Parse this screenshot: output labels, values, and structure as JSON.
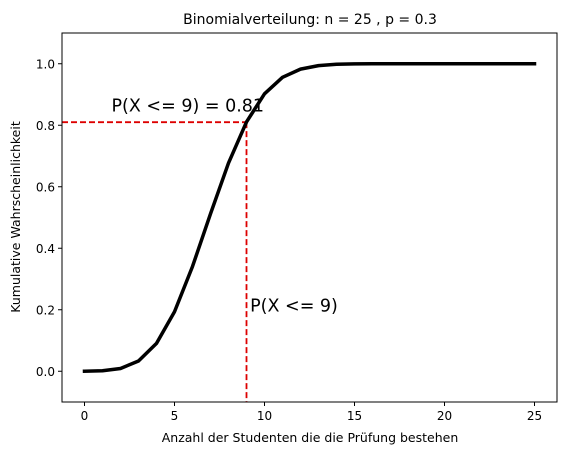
{
  "chart_data": {
    "type": "line",
    "title": "Binomialverteilung: n = 25 , p = 0.3",
    "xlabel": "Anzahl der Studenten die die Prüfung bestehen",
    "ylabel": "Kumulative Wahrscheinlichkeit",
    "xlim": [
      -1.25,
      26.25
    ],
    "ylim": [
      -0.1,
      1.1
    ],
    "xticks": [
      0,
      5,
      10,
      15,
      20,
      25
    ],
    "yticks": [
      0.0,
      0.2,
      0.4,
      0.6,
      0.8,
      1.0
    ],
    "grid": false,
    "series": [
      {
        "color": "#000000",
        "x": [
          0,
          1,
          2,
          3,
          4,
          5,
          6,
          7,
          8,
          9,
          10,
          11,
          12,
          13,
          14,
          15,
          16,
          17,
          18,
          19,
          20,
          21,
          22,
          23,
          24,
          25
        ],
        "y": [
          0.0001,
          0.0016,
          0.009,
          0.0332,
          0.0905,
          0.1935,
          0.3407,
          0.5118,
          0.6769,
          0.8106,
          0.9022,
          0.9558,
          0.9825,
          0.994,
          0.9982,
          0.9995,
          0.9999,
          1.0,
          1.0,
          1.0,
          1.0,
          1.0,
          1.0,
          1.0,
          1.0,
          1.0
        ]
      }
    ],
    "reference_lines": {
      "color": "#dd0000",
      "x": 9,
      "y": 0.81
    },
    "annotations": [
      {
        "text": "P(X <= 9) = 0.81",
        "x": 1.5,
        "y": 0.845
      },
      {
        "text": "P(X <= 9)",
        "x": 9.2,
        "y": 0.195
      }
    ]
  }
}
